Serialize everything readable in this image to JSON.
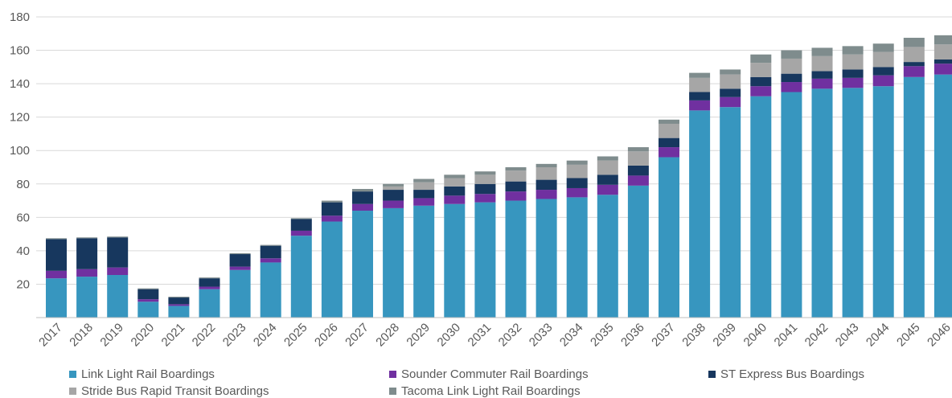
{
  "chart_data": {
    "type": "bar",
    "stacked": true,
    "title": "",
    "xlabel": "",
    "ylabel": "",
    "ylim": [
      0,
      180
    ],
    "yticks": [
      20,
      40,
      60,
      80,
      100,
      120,
      140,
      160,
      180
    ],
    "grid": true,
    "legend_position": "bottom",
    "categories": [
      "2017",
      "2018",
      "2019",
      "2020",
      "2021",
      "2022",
      "2023",
      "2024",
      "2025",
      "2026",
      "2027",
      "2028",
      "2029",
      "2030",
      "2031",
      "2032",
      "2033",
      "2034",
      "2035",
      "2036",
      "2037",
      "2038",
      "2039",
      "2040",
      "2041",
      "2042",
      "2043",
      "2044",
      "2045",
      "2046"
    ],
    "series": [
      {
        "name": "Link Light Rail Boardings",
        "color": "#3796bf",
        "values": [
          23.5,
          24.5,
          25.5,
          9.5,
          7.0,
          17.0,
          28.5,
          33.0,
          49.0,
          57.5,
          64.0,
          65.5,
          67.0,
          68.0,
          69.0,
          70.0,
          71.0,
          72.0,
          73.5,
          79.0,
          96.0,
          124.0,
          126.0,
          132.5,
          135.0,
          137.0,
          137.5,
          138.5,
          144.0,
          145.5
        ]
      },
      {
        "name": "Sounder Commuter Rail Boardings",
        "color": "#7030a0",
        "values": [
          4.5,
          4.5,
          4.5,
          1.5,
          1.0,
          1.5,
          2.0,
          2.5,
          3.0,
          3.5,
          4.0,
          4.5,
          4.5,
          5.0,
          5.0,
          5.5,
          5.5,
          5.5,
          6.0,
          6.0,
          6.0,
          6.0,
          6.0,
          6.0,
          6.0,
          6.0,
          6.0,
          6.5,
          6.5,
          6.5
        ]
      },
      {
        "name": "ST Express Bus Boardings",
        "color": "#17375e",
        "values": [
          19.0,
          18.5,
          18.0,
          6.0,
          4.0,
          5.0,
          7.5,
          7.5,
          7.0,
          8.0,
          7.5,
          6.5,
          5.0,
          5.5,
          6.0,
          6.0,
          6.0,
          6.0,
          6.0,
          6.0,
          5.5,
          5.0,
          5.0,
          5.5,
          5.0,
          4.5,
          5.0,
          5.0,
          2.5,
          2.5
        ]
      },
      {
        "name": "Stride Bus Rapid Transit Boardings",
        "color": "#a6a6a6",
        "values": [
          0,
          0,
          0,
          0,
          0,
          0,
          0,
          0,
          0,
          0,
          0,
          2.0,
          4.5,
          5.0,
          5.5,
          6.5,
          7.5,
          8.0,
          8.5,
          8.5,
          8.5,
          8.5,
          8.5,
          8.5,
          9.0,
          9.0,
          9.0,
          9.0,
          9.0,
          9.0
        ]
      },
      {
        "name": "Tacoma Link Light Rail Boardings",
        "color": "#7f8c8d",
        "values": [
          0.5,
          0.5,
          0.5,
          0.5,
          0.5,
          0.5,
          0.5,
          0.5,
          0.5,
          1.0,
          1.5,
          1.5,
          2.0,
          2.0,
          2.0,
          2.0,
          2.0,
          2.5,
          2.5,
          2.5,
          2.5,
          3.0,
          3.0,
          5.0,
          5.0,
          5.0,
          5.0,
          5.0,
          5.5,
          5.5
        ]
      }
    ]
  }
}
